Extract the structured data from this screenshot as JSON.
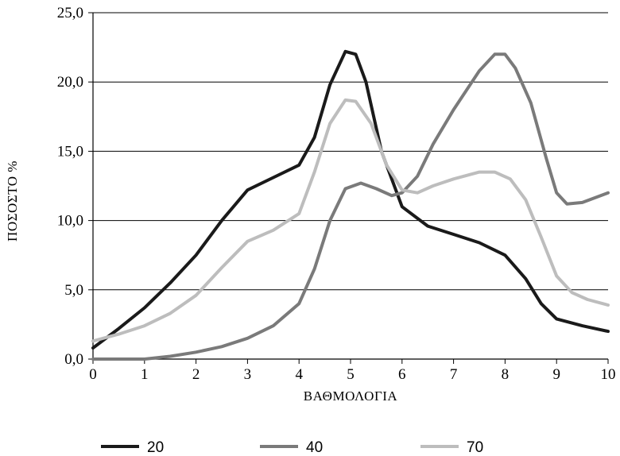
{
  "chart_data": {
    "type": "line",
    "title": "",
    "xlabel": "ΒΑΘΜΟΛΟΓΙΑ",
    "ylabel": "ΠΟΣΟΣΤΟ %",
    "xlim": [
      0,
      10
    ],
    "ylim": [
      0,
      25
    ],
    "x_ticks": [
      "0",
      "1",
      "2",
      "3",
      "4",
      "5",
      "6",
      "7",
      "8",
      "9",
      "10"
    ],
    "y_ticks": [
      "0,0",
      "5,0",
      "10,0",
      "15,0",
      "20,0",
      "25,0"
    ],
    "grid": "horizontal",
    "legend_position": "bottom",
    "series": [
      {
        "name": "20",
        "color": "#1a1a1a",
        "points": [
          [
            0,
            0.8
          ],
          [
            0.5,
            2.2
          ],
          [
            1,
            3.7
          ],
          [
            1.5,
            5.5
          ],
          [
            2,
            7.5
          ],
          [
            2.5,
            10.0
          ],
          [
            3,
            12.2
          ],
          [
            3.5,
            13.1
          ],
          [
            4,
            14.0
          ],
          [
            4.3,
            16.0
          ],
          [
            4.6,
            19.8
          ],
          [
            4.9,
            22.2
          ],
          [
            5.1,
            22.0
          ],
          [
            5.3,
            20.0
          ],
          [
            5.6,
            15.0
          ],
          [
            6,
            11.0
          ],
          [
            6.5,
            9.6
          ],
          [
            7,
            9.0
          ],
          [
            7.5,
            8.4
          ],
          [
            8,
            7.5
          ],
          [
            8.4,
            5.8
          ],
          [
            8.7,
            4.0
          ],
          [
            9,
            2.9
          ],
          [
            9.5,
            2.4
          ],
          [
            10,
            2.0
          ]
        ]
      },
      {
        "name": "40",
        "color": "#7a7a7a",
        "points": [
          [
            0,
            0
          ],
          [
            1,
            0
          ],
          [
            1.5,
            0.2
          ],
          [
            2,
            0.5
          ],
          [
            2.5,
            0.9
          ],
          [
            3,
            1.5
          ],
          [
            3.5,
            2.4
          ],
          [
            4,
            4.0
          ],
          [
            4.3,
            6.5
          ],
          [
            4.6,
            10.0
          ],
          [
            4.9,
            12.3
          ],
          [
            5.2,
            12.7
          ],
          [
            5.5,
            12.3
          ],
          [
            5.8,
            11.8
          ],
          [
            6,
            12.0
          ],
          [
            6.3,
            13.2
          ],
          [
            6.6,
            15.5
          ],
          [
            7,
            18.0
          ],
          [
            7.5,
            20.8
          ],
          [
            7.8,
            22.0
          ],
          [
            8,
            22.0
          ],
          [
            8.2,
            21.0
          ],
          [
            8.5,
            18.5
          ],
          [
            8.8,
            14.5
          ],
          [
            9,
            12.0
          ],
          [
            9.2,
            11.2
          ],
          [
            9.5,
            11.3
          ],
          [
            10,
            12.0
          ]
        ]
      },
      {
        "name": "70",
        "color": "#bdbdbd",
        "points": [
          [
            0,
            1.3
          ],
          [
            0.5,
            1.8
          ],
          [
            1,
            2.4
          ],
          [
            1.5,
            3.3
          ],
          [
            2,
            4.6
          ],
          [
            2.5,
            6.6
          ],
          [
            3,
            8.5
          ],
          [
            3.5,
            9.3
          ],
          [
            4,
            10.5
          ],
          [
            4.3,
            13.5
          ],
          [
            4.6,
            17.0
          ],
          [
            4.9,
            18.7
          ],
          [
            5.1,
            18.6
          ],
          [
            5.4,
            17.0
          ],
          [
            5.7,
            14.0
          ],
          [
            6,
            12.2
          ],
          [
            6.3,
            12.0
          ],
          [
            6.6,
            12.5
          ],
          [
            7,
            13.0
          ],
          [
            7.5,
            13.5
          ],
          [
            7.8,
            13.5
          ],
          [
            8.1,
            13.0
          ],
          [
            8.4,
            11.5
          ],
          [
            8.7,
            8.8
          ],
          [
            9,
            6.0
          ],
          [
            9.3,
            4.8
          ],
          [
            9.6,
            4.3
          ],
          [
            10,
            3.9
          ]
        ]
      }
    ]
  }
}
